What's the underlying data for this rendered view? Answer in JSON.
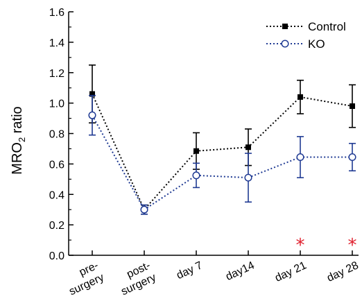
{
  "chart_data": {
    "type": "line",
    "categories": [
      "pre-surgery",
      "post-surgery",
      "day 7",
      "day14",
      "day 21",
      "day 28"
    ],
    "category_labels": [
      [
        "pre-",
        "surgery"
      ],
      [
        "post-",
        "surgery"
      ],
      [
        "day 7"
      ],
      [
        "day14"
      ],
      [
        "day 21"
      ],
      [
        "day 28"
      ]
    ],
    "ylabel": "MRO",
    "ylabel_sub": "2",
    "ylabel_suffix": " ratio",
    "xlabel": "",
    "title": "",
    "ylim": [
      0.0,
      1.6
    ],
    "y_ticks": [
      "0.0",
      "0.2",
      "0.4",
      "0.6",
      "0.8",
      "1.0",
      "1.2",
      "1.4",
      "1.6"
    ],
    "legend_position": "top-right",
    "series": [
      {
        "name": "Control",
        "color": "#000000",
        "marker": "filled-square",
        "line_style": "dotted",
        "values": [
          1.06,
          0.3,
          0.685,
          0.71,
          1.04,
          0.98
        ],
        "errors": [
          0.19,
          0.03,
          0.12,
          0.12,
          0.11,
          0.14
        ]
      },
      {
        "name": "KO",
        "color": "#1f3a93",
        "marker": "open-circle",
        "line_style": "dotted",
        "values": [
          0.92,
          0.3,
          0.525,
          0.51,
          0.645,
          0.645
        ],
        "errors": [
          0.13,
          0.03,
          0.08,
          0.16,
          0.135,
          0.09
        ]
      }
    ],
    "annotations": [
      {
        "text": "*",
        "category_index": 4,
        "color": "#e0202e"
      },
      {
        "text": "*",
        "category_index": 5,
        "color": "#e0202e"
      }
    ],
    "grid": false
  }
}
